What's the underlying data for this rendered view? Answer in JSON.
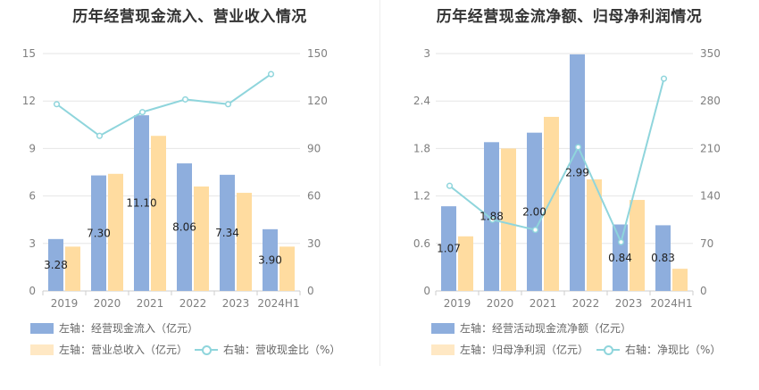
{
  "colors": {
    "primary_bar": "#8eaedd",
    "secondary_bar": "#ffdca0",
    "line": "#8fd5dc",
    "grid": "#e6e6e6",
    "axis_text": "#7f7f7f"
  },
  "charts": [
    {
      "title": "历年经营现金流入、营业收入情况",
      "legend": {
        "bar1": "左轴：经营现金流入（亿元）",
        "bar2": "左轴：营业总收入（亿元）",
        "line": "右轴：营收现金比（%）"
      },
      "left_ticks": [
        "0",
        "3",
        "6",
        "9",
        "12",
        "15"
      ],
      "right_ticks": [
        "0",
        "30",
        "60",
        "90",
        "120",
        "150"
      ]
    },
    {
      "title": "历年经营现金流净额、归母净利润情况",
      "legend": {
        "bar1": "左轴：经营活动现金流净额（亿元）",
        "bar2": "左轴：归母净利润（亿元）",
        "line": "右轴：净现比（%）"
      },
      "left_ticks": [
        "0",
        "0.6",
        "1.2",
        "1.8",
        "2.4",
        "3"
      ],
      "right_ticks": [
        "0",
        "70",
        "140",
        "210",
        "280",
        "350"
      ]
    }
  ],
  "chart_data": [
    {
      "type": "bar",
      "title": "历年经营现金流入、营业收入情况",
      "categories": [
        "2019",
        "2020",
        "2021",
        "2022",
        "2023",
        "2024H1"
      ],
      "ylim_left": [
        0,
        15
      ],
      "ylim_right": [
        0,
        150
      ],
      "series": [
        {
          "name": "左轴：经营现金流入（亿元）",
          "axis": "left",
          "type": "bar",
          "values": [
            3.28,
            7.3,
            11.1,
            8.06,
            7.34,
            3.9
          ],
          "labels": [
            "3.28",
            "7.30",
            "11.10",
            "8.06",
            "7.34",
            "3.90"
          ]
        },
        {
          "name": "左轴：营业总收入（亿元）",
          "axis": "left",
          "type": "bar",
          "values": [
            2.8,
            7.4,
            9.8,
            6.6,
            6.2,
            2.8
          ]
        },
        {
          "name": "右轴：营收现金比（%）",
          "axis": "right",
          "type": "line",
          "values": [
            118,
            98,
            113,
            121,
            118,
            137
          ]
        }
      ]
    },
    {
      "type": "bar",
      "title": "历年经营现金流净额、归母净利润情况",
      "categories": [
        "2019",
        "2020",
        "2021",
        "2022",
        "2023",
        "2024H1"
      ],
      "ylim_left": [
        0,
        3
      ],
      "ylim_right": [
        0,
        350
      ],
      "series": [
        {
          "name": "左轴：经营活动现金流净额（亿元）",
          "axis": "left",
          "type": "bar",
          "values": [
            1.07,
            1.88,
            2.0,
            2.99,
            0.84,
            0.83
          ],
          "labels": [
            "1.07",
            "1.88",
            "2.00",
            "2.99",
            "0.84",
            "0.83"
          ]
        },
        {
          "name": "左轴：归母净利润（亿元）",
          "axis": "left",
          "type": "bar",
          "values": [
            0.69,
            1.8,
            2.2,
            1.41,
            1.15,
            0.28
          ]
        },
        {
          "name": "右轴：净现比（%）",
          "axis": "right",
          "type": "line",
          "values": [
            155,
            105,
            90,
            212,
            72,
            313
          ]
        }
      ]
    }
  ]
}
